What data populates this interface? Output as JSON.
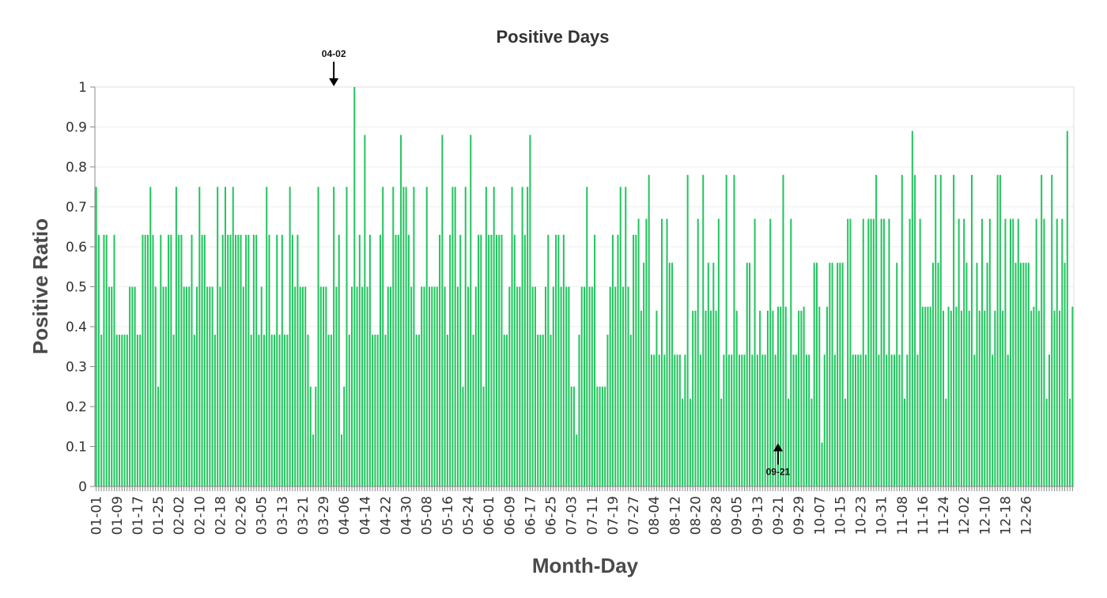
{
  "chart_data": {
    "type": "bar",
    "title": "Positive Days",
    "xlabel": "Month-Day",
    "ylabel": "Positive Ratio",
    "ylim": [
      0,
      1
    ],
    "yticks": [
      0,
      0.1,
      0.2,
      0.3,
      0.4,
      0.5,
      0.6,
      0.7,
      0.8,
      0.9,
      1
    ],
    "ytick_labels": [
      "0",
      "0.1",
      "0.2",
      "0.3",
      "0.4",
      "0.5",
      "0.6",
      "0.7",
      "0.8",
      "0.9",
      "1"
    ],
    "xtick_labels": [
      "01-01",
      "01-09",
      "01-17",
      "01-25",
      "02-02",
      "02-10",
      "02-18",
      "02-26",
      "03-05",
      "03-13",
      "03-21",
      "03-29",
      "04-06",
      "04-14",
      "04-22",
      "04-30",
      "05-08",
      "05-16",
      "05-24",
      "06-01",
      "06-09",
      "06-17",
      "06-25",
      "07-03",
      "07-11",
      "07-19",
      "07-27",
      "08-04",
      "08-12",
      "08-20",
      "08-28",
      "09-05",
      "09-13",
      "09-21",
      "09-29",
      "10-07",
      "10-15",
      "10-23",
      "10-31",
      "11-08",
      "11-16",
      "11-24",
      "12-02",
      "12-10",
      "12-18",
      "12-26"
    ],
    "grid": true,
    "bar_color": "#22c55e",
    "annotations": [
      {
        "label": "04-02",
        "x": "04-02",
        "y": 1.0,
        "direction": "down"
      },
      {
        "label": "09-21",
        "x": "09-21",
        "y": 0.11,
        "direction": "up"
      }
    ],
    "values": [
      0.75,
      0.63,
      0.38,
      0.63,
      0.63,
      0.5,
      0.5,
      0.63,
      0.38,
      0.38,
      0.38,
      0.38,
      0.38,
      0.5,
      0.5,
      0.5,
      0.38,
      0.38,
      0.63,
      0.63,
      0.63,
      0.75,
      0.63,
      0.5,
      0.25,
      0.63,
      0.5,
      0.5,
      0.63,
      0.63,
      0.38,
      0.75,
      0.63,
      0.63,
      0.5,
      0.5,
      0.5,
      0.63,
      0.38,
      0.5,
      0.75,
      0.63,
      0.63,
      0.5,
      0.5,
      0.5,
      0.38,
      0.75,
      0.5,
      0.63,
      0.75,
      0.63,
      0.63,
      0.75,
      0.63,
      0.63,
      0.63,
      0.5,
      0.63,
      0.63,
      0.38,
      0.63,
      0.63,
      0.38,
      0.5,
      0.38,
      0.75,
      0.63,
      0.38,
      0.38,
      0.63,
      0.38,
      0.63,
      0.38,
      0.38,
      0.75,
      0.63,
      0.5,
      0.63,
      0.5,
      0.5,
      0.5,
      0.38,
      0.25,
      0.13,
      0.25,
      0.75,
      0.5,
      0.5,
      0.5,
      0.38,
      0.38,
      0.75,
      0.5,
      0.63,
      0.13,
      0.25,
      0.75,
      0.38,
      0.5,
      1.0,
      0.5,
      0.63,
      0.5,
      0.88,
      0.5,
      0.63,
      0.38,
      0.38,
      0.38,
      0.63,
      0.75,
      0.38,
      0.5,
      0.5,
      0.75,
      0.63,
      0.63,
      0.88,
      0.75,
      0.75,
      0.63,
      0.5,
      0.75,
      0.38,
      0.38,
      0.5,
      0.5,
      0.75,
      0.5,
      0.5,
      0.5,
      0.5,
      0.63,
      0.88,
      0.5,
      0.38,
      0.63,
      0.75,
      0.75,
      0.5,
      0.63,
      0.25,
      0.75,
      0.5,
      0.88,
      0.38,
      0.5,
      0.63,
      0.63,
      0.25,
      0.75,
      0.63,
      0.63,
      0.75,
      0.63,
      0.63,
      0.63,
      0.38,
      0.38,
      0.5,
      0.75,
      0.63,
      0.5,
      0.5,
      0.75,
      0.63,
      0.75,
      0.88,
      0.5,
      0.5,
      0.38,
      0.38,
      0.38,
      0.5,
      0.63,
      0.38,
      0.5,
      0.63,
      0.63,
      0.5,
      0.63,
      0.5,
      0.5,
      0.25,
      0.25,
      0.13,
      0.38,
      0.5,
      0.5,
      0.75,
      0.5,
      0.5,
      0.63,
      0.25,
      0.25,
      0.25,
      0.25,
      0.38,
      0.5,
      0.63,
      0.5,
      0.63,
      0.75,
      0.5,
      0.75,
      0.5,
      0.38,
      0.63,
      0.63,
      0.67,
      0.44,
      0.56,
      0.67,
      0.78,
      0.33,
      0.33,
      0.44,
      0.33,
      0.67,
      0.33,
      0.67,
      0.56,
      0.56,
      0.33,
      0.33,
      0.33,
      0.22,
      0.33,
      0.78,
      0.22,
      0.44,
      0.44,
      0.67,
      0.33,
      0.78,
      0.44,
      0.56,
      0.44,
      0.56,
      0.44,
      0.67,
      0.22,
      0.33,
      0.78,
      0.33,
      0.33,
      0.78,
      0.44,
      0.33,
      0.33,
      0.33,
      0.56,
      0.56,
      0.33,
      0.67,
      0.33,
      0.44,
      0.33,
      0.33,
      0.44,
      0.67,
      0.44,
      0.33,
      0.45,
      0.45,
      0.78,
      0.45,
      0.22,
      0.67,
      0.33,
      0.33,
      0.44,
      0.44,
      0.45,
      0.33,
      0.33,
      0.22,
      0.56,
      0.56,
      0.45,
      0.11,
      0.33,
      0.45,
      0.56,
      0.56,
      0.33,
      0.56,
      0.56,
      0.56,
      0.22,
      0.67,
      0.67,
      0.33,
      0.33,
      0.33,
      0.33,
      0.67,
      0.33,
      0.67,
      0.67,
      0.67,
      0.78,
      0.33,
      0.67,
      0.67,
      0.33,
      0.67,
      0.33,
      0.33,
      0.56,
      0.33,
      0.78,
      0.22,
      0.33,
      0.67,
      0.89,
      0.78,
      0.33,
      0.67,
      0.45,
      0.45,
      0.45,
      0.45,
      0.56,
      0.78,
      0.56,
      0.78,
      0.44,
      0.22,
      0.45,
      0.44,
      0.78,
      0.45,
      0.67,
      0.44,
      0.67,
      0.56,
      0.44,
      0.78,
      0.33,
      0.56,
      0.44,
      0.67,
      0.44,
      0.56,
      0.67,
      0.33,
      0.44,
      0.78,
      0.78,
      0.44,
      0.67,
      0.33,
      0.67,
      0.67,
      0.56,
      0.67,
      0.56,
      0.56,
      0.56,
      0.56,
      0.44,
      0.45,
      0.67,
      0.44,
      0.78,
      0.67,
      0.22,
      0.33,
      0.78,
      0.44,
      0.67,
      0.44,
      0.67,
      0.56,
      0.89,
      0.22,
      0.45
    ]
  }
}
